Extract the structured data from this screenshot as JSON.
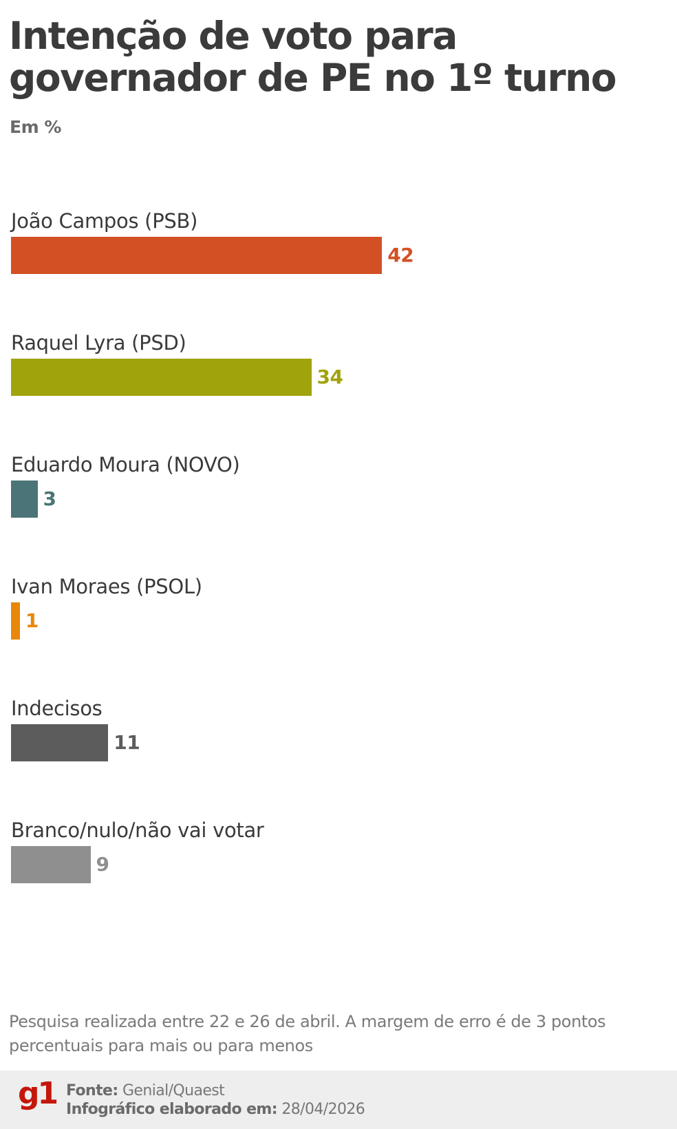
{
  "header": {
    "title": "Intenção de voto para governador de PE no 1º turno",
    "subtitle": "Em %"
  },
  "chart_data": {
    "type": "bar",
    "orientation": "horizontal",
    "title": "Intenção de voto para governador de PE no 1º turno",
    "subtitle": "Em %",
    "xlabel": "",
    "ylabel": "",
    "unit": "%",
    "grid": false,
    "legend": null,
    "categories": [
      "João Campos (PSB)",
      "Raquel Lyra (PSD)",
      "Eduardo Moura (NOVO)",
      "Ivan Moraes (PSOL)",
      "Indecisos",
      "Branco/nulo/não vai votar"
    ],
    "values": [
      42,
      34,
      3,
      1,
      11,
      9
    ],
    "colors": [
      "#d35024",
      "#a0a30c",
      "#4a7477",
      "#e8870a",
      "#5c5c5c",
      "#8f8f8f"
    ]
  },
  "bars": [
    {
      "label": "João Campos (PSB)",
      "value": "42",
      "color": "#d35024"
    },
    {
      "label": "Raquel Lyra (PSD)",
      "value": "34",
      "color": "#a0a30c"
    },
    {
      "label": "Eduardo Moura (NOVO)",
      "value": "3",
      "color": "#4a7477"
    },
    {
      "label": "Ivan Moraes (PSOL)",
      "value": "1",
      "color": "#e8870a"
    },
    {
      "label": "Indecisos",
      "value": "11",
      "color": "#5c5c5c"
    },
    {
      "label": "Branco/nulo/não vai votar",
      "value": "9",
      "color": "#8f8f8f"
    }
  ],
  "note": "Pesquisa realizada entre 22 e 26 de abril. A margem de erro é de 3 pontos percentuais para mais ou para menos",
  "footer": {
    "logo": "g1",
    "source_label": "Fonte:",
    "source_value": "Genial/Quaest",
    "date_label": "Infográfico elaborado em:",
    "date_value": "28/04/2026",
    "logo_color": "#c4170c"
  }
}
